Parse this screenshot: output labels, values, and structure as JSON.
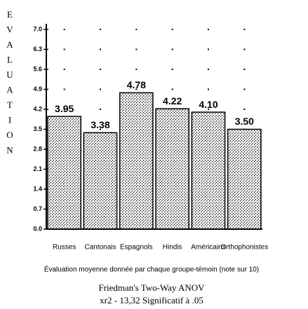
{
  "chart_data": {
    "type": "bar",
    "ylabel": "EVALUATION",
    "xlabel": "Évaluation moyenne donnée par chaque groupe-témoin (note sur 10)",
    "annotations": [
      "Friedman's Two-Way ANOV",
      "xr2 - 13,32 Significatif à .05"
    ],
    "categories": [
      "Russes",
      "Cantonais",
      "Espagnols",
      "Hindis",
      "Américains",
      "Orthophonistes"
    ],
    "values": [
      3.95,
      3.38,
      4.78,
      4.22,
      4.1,
      3.5
    ],
    "value_labels": [
      "3.95",
      "3.38",
      "4.78",
      "4.22",
      "4.10",
      "3.50"
    ],
    "color": "#000000",
    "ylim": [
      0,
      7
    ],
    "yticks": [
      {
        "value": 0,
        "label": "0.0"
      },
      0.7,
      1.4,
      2.1,
      2.8,
      3.5,
      4.2,
      4.9,
      5.6,
      6.3,
      {
        "value": 7,
        "label": "7.0"
      }
    ],
    "grid": true
  }
}
